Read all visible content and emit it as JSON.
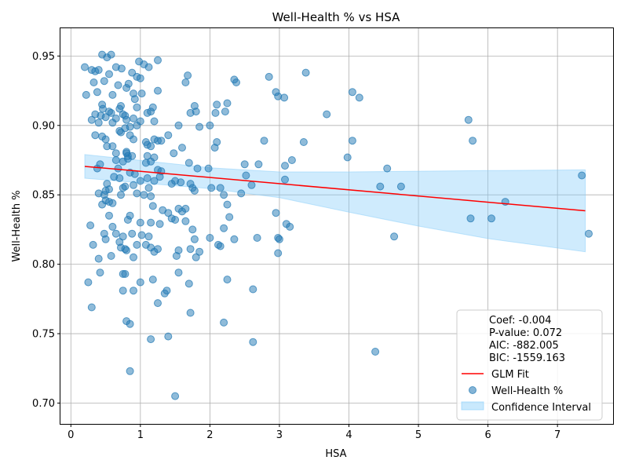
{
  "chart_data": {
    "type": "scatter",
    "title": "Well-Health % vs HSA",
    "xlabel": "HSA",
    "ylabel": "Well-Health %",
    "xlim": [
      -0.15,
      7.8
    ],
    "ylim": [
      0.685,
      0.97
    ],
    "xticks": [
      0,
      1,
      2,
      3,
      4,
      5,
      6,
      7
    ],
    "yticks": [
      0.7,
      0.75,
      0.8,
      0.85,
      0.9,
      0.95
    ],
    "xtick_labels": [
      "0",
      "1",
      "2",
      "3",
      "4",
      "5",
      "6",
      "7"
    ],
    "ytick_labels": [
      "0.70",
      "0.75",
      "0.80",
      "0.85",
      "0.90",
      "0.95"
    ],
    "grid": true,
    "legend_position": "lower-right",
    "colors": {
      "points": "#1f77b4",
      "fit": "#ff0000",
      "ci": "#87cefa"
    },
    "stats": [
      "Coef: -0.004",
      "P-value: 0.072",
      "AIC: -882.005",
      "BIC: -1559.163"
    ],
    "series": [
      {
        "name": "Well-Health %",
        "kind": "scatter",
        "points": [
          [
            0.2,
            0.942
          ],
          [
            0.22,
            0.922
          ],
          [
            0.3,
            0.94
          ],
          [
            0.35,
            0.939
          ],
          [
            0.33,
            0.931
          ],
          [
            0.38,
            0.924
          ],
          [
            0.4,
            0.94
          ],
          [
            0.45,
            0.951
          ],
          [
            0.48,
            0.932
          ],
          [
            0.52,
            0.949
          ],
          [
            0.58,
            0.951
          ],
          [
            0.55,
            0.937
          ],
          [
            0.6,
            0.922
          ],
          [
            0.65,
            0.942
          ],
          [
            0.68,
            0.929
          ],
          [
            0.73,
            0.941
          ],
          [
            0.8,
            0.927
          ],
          [
            0.83,
            0.93
          ],
          [
            0.88,
            0.938
          ],
          [
            0.9,
            0.923
          ],
          [
            0.92,
            0.919
          ],
          [
            0.95,
            0.935
          ],
          [
            0.98,
            0.946
          ],
          [
            1.0,
            0.934
          ],
          [
            1.05,
            0.944
          ],
          [
            1.12,
            0.942
          ],
          [
            1.25,
            0.947
          ],
          [
            1.25,
            0.925
          ],
          [
            1.02,
            0.923
          ],
          [
            0.95,
            0.913
          ],
          [
            1.1,
            0.909
          ],
          [
            1.15,
            0.91
          ],
          [
            1.18,
            0.913
          ],
          [
            1.2,
            0.903
          ],
          [
            0.3,
            0.904
          ],
          [
            0.35,
            0.908
          ],
          [
            0.4,
            0.902
          ],
          [
            0.43,
            0.907
          ],
          [
            0.45,
            0.915
          ],
          [
            0.46,
            0.912
          ],
          [
            0.5,
            0.906
          ],
          [
            0.55,
            0.91
          ],
          [
            0.58,
            0.909
          ],
          [
            0.6,
            0.902
          ],
          [
            0.65,
            0.905
          ],
          [
            0.7,
            0.912
          ],
          [
            0.72,
            0.914
          ],
          [
            0.75,
            0.908
          ],
          [
            0.78,
            0.907
          ],
          [
            0.8,
            0.904
          ],
          [
            0.85,
            0.899
          ],
          [
            0.9,
            0.905
          ],
          [
            0.95,
            0.9
          ],
          [
            1.0,
            0.903
          ],
          [
            0.35,
            0.893
          ],
          [
            0.45,
            0.892
          ],
          [
            0.5,
            0.89
          ],
          [
            0.52,
            0.885
          ],
          [
            0.6,
            0.885
          ],
          [
            0.65,
            0.88
          ],
          [
            0.7,
            0.896
          ],
          [
            0.72,
            0.895
          ],
          [
            0.78,
            0.898
          ],
          [
            0.8,
            0.88
          ],
          [
            0.82,
            0.876
          ],
          [
            0.85,
            0.893
          ],
          [
            0.9,
            0.89
          ],
          [
            1.08,
            0.888
          ],
          [
            1.1,
            0.886
          ],
          [
            1.15,
            0.885
          ],
          [
            1.2,
            0.89
          ],
          [
            1.25,
            0.889
          ],
          [
            1.3,
            0.889
          ],
          [
            1.4,
            0.893
          ],
          [
            1.1,
            0.878
          ],
          [
            1.15,
            0.874
          ],
          [
            1.2,
            0.877
          ],
          [
            1.48,
            0.88
          ],
          [
            1.55,
            0.9
          ],
          [
            1.6,
            0.884
          ],
          [
            1.65,
            0.931
          ],
          [
            1.68,
            0.936
          ],
          [
            1.72,
            0.909
          ],
          [
            1.78,
            0.914
          ],
          [
            1.8,
            0.91
          ],
          [
            1.85,
            0.899
          ],
          [
            2.0,
            0.9
          ],
          [
            2.08,
            0.909
          ],
          [
            2.1,
            0.915
          ],
          [
            2.07,
            0.884
          ],
          [
            2.1,
            0.888
          ],
          [
            2.22,
            0.91
          ],
          [
            2.25,
            0.916
          ],
          [
            2.35,
            0.933
          ],
          [
            2.38,
            0.931
          ],
          [
            2.5,
            0.872
          ],
          [
            2.52,
            0.864
          ],
          [
            2.6,
            0.857
          ],
          [
            2.7,
            0.872
          ],
          [
            2.78,
            0.889
          ],
          [
            2.85,
            0.935
          ],
          [
            2.95,
            0.924
          ],
          [
            2.98,
            0.921
          ],
          [
            3.07,
            0.92
          ],
          [
            3.08,
            0.871
          ],
          [
            3.08,
            0.861
          ],
          [
            3.18,
            0.875
          ],
          [
            3.35,
            0.888
          ],
          [
            3.38,
            0.938
          ],
          [
            3.68,
            0.908
          ],
          [
            3.98,
            0.877
          ],
          [
            4.05,
            0.924
          ],
          [
            4.05,
            0.889
          ],
          [
            4.15,
            0.92
          ],
          [
            4.45,
            0.856
          ],
          [
            4.55,
            0.869
          ],
          [
            4.75,
            0.856
          ],
          [
            5.72,
            0.904
          ],
          [
            5.78,
            0.889
          ],
          [
            7.35,
            0.864
          ],
          [
            0.38,
            0.869
          ],
          [
            0.42,
            0.872
          ],
          [
            0.48,
            0.85
          ],
          [
            0.5,
            0.853
          ],
          [
            0.52,
            0.858
          ],
          [
            0.55,
            0.845
          ],
          [
            0.6,
            0.844
          ],
          [
            0.65,
            0.875
          ],
          [
            0.68,
            0.869
          ],
          [
            0.7,
            0.862
          ],
          [
            0.72,
            0.85
          ],
          [
            0.75,
            0.874
          ],
          [
            0.78,
            0.856
          ],
          [
            0.8,
            0.881
          ],
          [
            0.82,
            0.878
          ],
          [
            0.85,
            0.866
          ],
          [
            0.88,
            0.878
          ],
          [
            0.9,
            0.857
          ],
          [
            0.92,
            0.865
          ],
          [
            0.95,
            0.851
          ],
          [
            1.0,
            0.86
          ],
          [
            1.05,
            0.85
          ],
          [
            1.08,
            0.873
          ],
          [
            1.1,
            0.862
          ],
          [
            1.12,
            0.855
          ],
          [
            1.15,
            0.849
          ],
          [
            1.2,
            0.86
          ],
          [
            1.25,
            0.868
          ],
          [
            1.28,
            0.863
          ],
          [
            1.3,
            0.867
          ],
          [
            1.45,
            0.858
          ],
          [
            1.5,
            0.86
          ],
          [
            1.55,
            0.84
          ],
          [
            1.58,
            0.859
          ],
          [
            1.65,
            0.84
          ],
          [
            1.7,
            0.873
          ],
          [
            1.72,
            0.858
          ],
          [
            1.75,
            0.855
          ],
          [
            1.78,
            0.853
          ],
          [
            1.82,
            0.869
          ],
          [
            1.98,
            0.869
          ],
          [
            2.02,
            0.855
          ],
          [
            2.15,
            0.855
          ],
          [
            2.2,
            0.85
          ],
          [
            2.25,
            0.843
          ],
          [
            2.28,
            0.834
          ],
          [
            2.45,
            0.851
          ],
          [
            0.4,
            0.851
          ],
          [
            0.45,
            0.843
          ],
          [
            0.5,
            0.846
          ],
          [
            0.55,
            0.854
          ],
          [
            0.62,
            0.863
          ],
          [
            0.75,
            0.855
          ],
          [
            1.15,
            0.83
          ],
          [
            1.18,
            0.842
          ],
          [
            0.28,
            0.828
          ],
          [
            0.32,
            0.814
          ],
          [
            0.4,
            0.804
          ],
          [
            0.42,
            0.794
          ],
          [
            0.48,
            0.822
          ],
          [
            0.5,
            0.818
          ],
          [
            0.55,
            0.835
          ],
          [
            0.58,
            0.806
          ],
          [
            0.6,
            0.827
          ],
          [
            0.65,
            0.822
          ],
          [
            0.7,
            0.816
          ],
          [
            0.72,
            0.812
          ],
          [
            0.75,
            0.82
          ],
          [
            0.78,
            0.811
          ],
          [
            0.8,
            0.81
          ],
          [
            0.82,
            0.832
          ],
          [
            0.85,
            0.835
          ],
          [
            0.88,
            0.822
          ],
          [
            0.9,
            0.805
          ],
          [
            0.95,
            0.814
          ],
          [
            1.0,
            0.83
          ],
          [
            1.02,
            0.821
          ],
          [
            1.08,
            0.814
          ],
          [
            1.12,
            0.82
          ],
          [
            1.15,
            0.812
          ],
          [
            1.2,
            0.809
          ],
          [
            1.25,
            0.811
          ],
          [
            1.28,
            0.829
          ],
          [
            1.32,
            0.839
          ],
          [
            1.4,
            0.837
          ],
          [
            1.45,
            0.833
          ],
          [
            1.5,
            0.832
          ],
          [
            1.52,
            0.806
          ],
          [
            1.55,
            0.81
          ],
          [
            1.6,
            0.838
          ],
          [
            1.65,
            0.831
          ],
          [
            1.72,
            0.811
          ],
          [
            1.75,
            0.825
          ],
          [
            1.78,
            0.818
          ],
          [
            1.8,
            0.805
          ],
          [
            1.85,
            0.809
          ],
          [
            2.0,
            0.819
          ],
          [
            2.12,
            0.814
          ],
          [
            2.15,
            0.813
          ],
          [
            2.2,
            0.826
          ],
          [
            2.35,
            0.818
          ],
          [
            2.68,
            0.819
          ],
          [
            2.95,
            0.837
          ],
          [
            2.98,
            0.819
          ],
          [
            3.0,
            0.818
          ],
          [
            3.1,
            0.829
          ],
          [
            3.15,
            0.827
          ],
          [
            4.65,
            0.82
          ],
          [
            5.75,
            0.833
          ],
          [
            6.05,
            0.833
          ],
          [
            6.25,
            0.845
          ],
          [
            7.45,
            0.822
          ],
          [
            0.25,
            0.787
          ],
          [
            0.3,
            0.769
          ],
          [
            0.75,
            0.793
          ],
          [
            0.78,
            0.793
          ],
          [
            0.75,
            0.781
          ],
          [
            0.9,
            0.781
          ],
          [
            0.8,
            0.759
          ],
          [
            0.85,
            0.757
          ],
          [
            1.0,
            0.787
          ],
          [
            1.18,
            0.789
          ],
          [
            1.25,
            0.772
          ],
          [
            1.35,
            0.779
          ],
          [
            1.38,
            0.781
          ],
          [
            1.55,
            0.794
          ],
          [
            1.7,
            0.786
          ],
          [
            1.72,
            0.765
          ],
          [
            1.4,
            0.748
          ],
          [
            1.15,
            0.746
          ],
          [
            2.2,
            0.758
          ],
          [
            2.25,
            0.789
          ],
          [
            2.62,
            0.782
          ],
          [
            2.98,
            0.808
          ],
          [
            2.62,
            0.744
          ],
          [
            4.38,
            0.737
          ],
          [
            0.85,
            0.723
          ],
          [
            1.5,
            0.705
          ]
        ]
      },
      {
        "name": "GLM Fit",
        "kind": "line",
        "x": [
          0.2,
          7.4
        ],
        "y": [
          0.8705,
          0.8385
        ]
      },
      {
        "name": "Confidence Interval",
        "kind": "band",
        "x": [
          0.2,
          2.0,
          3.0,
          4.0,
          5.0,
          6.0,
          7.4
        ],
        "lower": [
          0.862,
          0.8545,
          0.848,
          0.8375,
          0.8275,
          0.8185,
          0.809
        ],
        "upper": [
          0.879,
          0.8695,
          0.8665,
          0.8665,
          0.867,
          0.8675,
          0.868
        ]
      }
    ]
  }
}
